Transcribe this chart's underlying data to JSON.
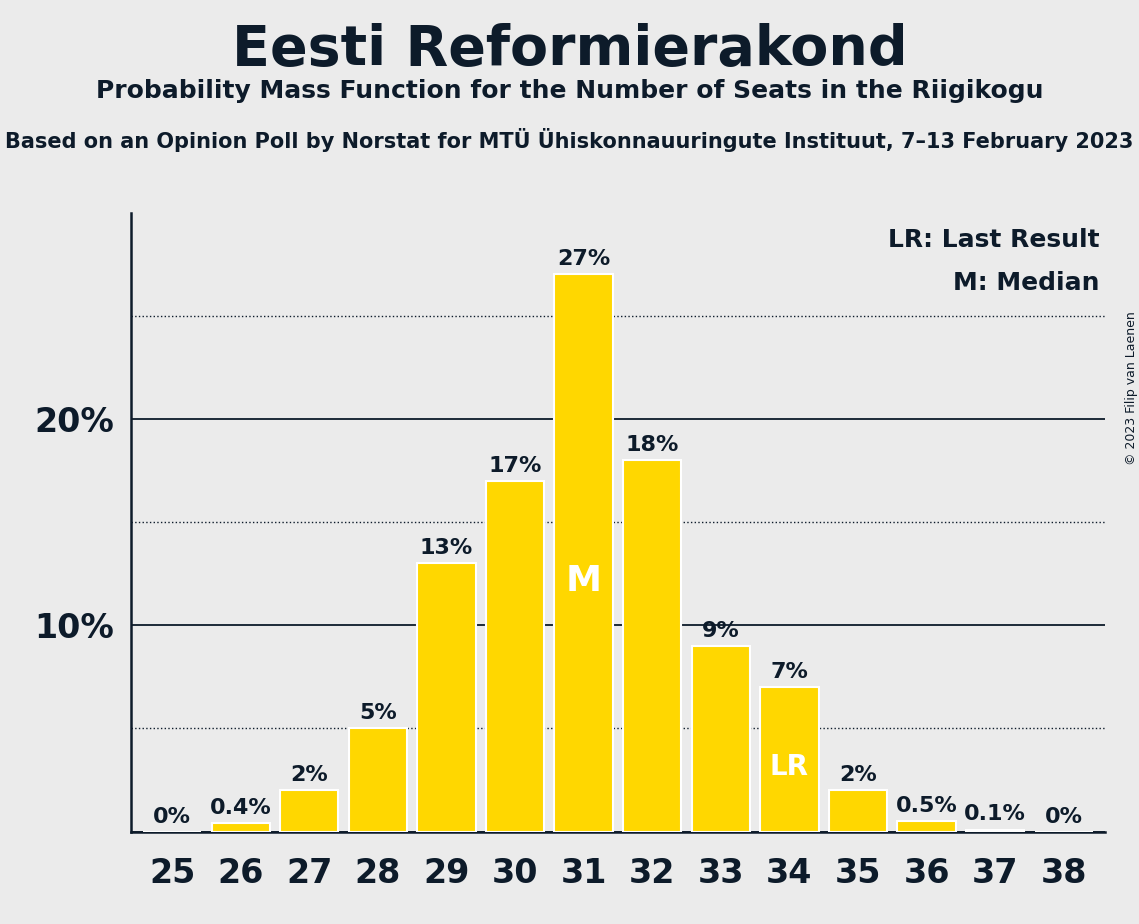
{
  "title": "Eesti Reformierakond",
  "subtitle": "Probability Mass Function for the Number of Seats in the Riigikogu",
  "source_line": "Based on an Opinion Poll by Norstat for MTÜ Ühiskonnauuringute Instituut, 7–13 February 2023",
  "copyright": "© 2023 Filip van Laenen",
  "seats": [
    25,
    26,
    27,
    28,
    29,
    30,
    31,
    32,
    33,
    34,
    35,
    36,
    37,
    38
  ],
  "probabilities": [
    0.0,
    0.4,
    2.0,
    5.0,
    13.0,
    17.0,
    27.0,
    18.0,
    9.0,
    7.0,
    2.0,
    0.5,
    0.1,
    0.0
  ],
  "bar_labels": [
    "0%",
    "0.4%",
    "2%",
    "5%",
    "13%",
    "17%",
    "27%",
    "18%",
    "9%",
    "7%",
    "2%",
    "0.5%",
    "0.1%",
    "0%"
  ],
  "bar_color": "#FFD700",
  "bar_edge_color": "#FFFFFF",
  "background_color": "#EBEBEB",
  "text_color": "#0D1B2A",
  "median_seat": 31,
  "lr_seat": 34,
  "yticks_labeled": [
    10,
    20
  ],
  "ytick_solid": [
    0,
    10,
    20
  ],
  "ytick_dotted": [
    5,
    15,
    25
  ],
  "ylim": [
    0,
    30
  ],
  "bar_label_fontsize": 16,
  "tick_label_fontsize": 24,
  "legend_lr": "LR: Last Result",
  "legend_m": "M: Median",
  "legend_fontsize": 18,
  "title_fontsize": 40,
  "subtitle_fontsize": 18,
  "source_fontsize": 15
}
